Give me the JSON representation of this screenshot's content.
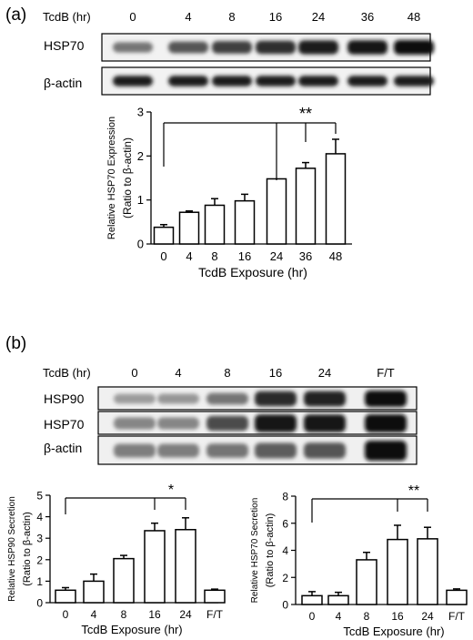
{
  "panel_a": {
    "label": "(a)",
    "blot": {
      "lane_header": "TcdB (hr)",
      "lanes": [
        "0",
        "4",
        "8",
        "16",
        "24",
        "36",
        "48"
      ],
      "rows": [
        {
          "name": "HSP70",
          "intensity": [
            0.35,
            0.55,
            0.68,
            0.78,
            0.88,
            0.94,
            1.0
          ]
        },
        {
          "name": "β-actin",
          "intensity": [
            0.9,
            0.9,
            0.9,
            0.9,
            0.9,
            0.9,
            0.9
          ]
        }
      ]
    },
    "significance": "**"
  },
  "panel_b": {
    "label": "(b)",
    "blot": {
      "lane_header": "TcdB (hr)",
      "lanes": [
        "0",
        "4",
        "8",
        "16",
        "24",
        "F/T"
      ],
      "rows": [
        {
          "name": "HSP90",
          "intensity": [
            0.12,
            0.15,
            0.35,
            0.8,
            0.85,
            1.0
          ]
        },
        {
          "name": "HSP70",
          "intensity": [
            0.25,
            0.25,
            0.6,
            0.95,
            0.95,
            1.0
          ]
        },
        {
          "name": "β-actin",
          "intensity": [
            0.3,
            0.3,
            0.35,
            0.5,
            0.55,
            1.0
          ]
        }
      ]
    },
    "significance_left": "*",
    "significance_right": "**"
  },
  "chart_data": [
    {
      "type": "bar",
      "categories": [
        "0",
        "4",
        "8",
        "16",
        "24",
        "36",
        "48"
      ],
      "values": [
        0.38,
        0.72,
        0.88,
        0.98,
        1.48,
        1.72,
        2.05
      ],
      "errors": [
        0.06,
        0.03,
        0.15,
        0.15,
        0.0,
        0.13,
        0.33
      ],
      "xlabel": "TcdB Exposure (hr)",
      "ylabel": "Relative HSP70 Expression",
      "ylabel2": "(Ratio to β-actin)",
      "ylim": [
        0,
        3
      ],
      "yticks": [
        "0",
        "1",
        "2",
        "3"
      ]
    },
    {
      "type": "bar",
      "categories": [
        "0",
        "4",
        "8",
        "16",
        "24",
        "F/T"
      ],
      "values": [
        0.58,
        1.0,
        2.05,
        3.35,
        3.4,
        0.58
      ],
      "errors": [
        0.12,
        0.33,
        0.15,
        0.35,
        0.55,
        0.05
      ],
      "xlabel": "TcdB Exposure (hr)",
      "ylabel": "Relative HSP90 Secretion",
      "ylabel2": "(Ratio to β-actin)",
      "ylim": [
        0,
        5
      ],
      "yticks": [
        "0",
        "1",
        "2",
        "3",
        "4",
        "5"
      ]
    },
    {
      "type": "bar",
      "categories": [
        "0",
        "4",
        "8",
        "16",
        "24",
        "F/T"
      ],
      "values": [
        0.65,
        0.65,
        3.3,
        4.8,
        4.85,
        1.05
      ],
      "errors": [
        0.3,
        0.25,
        0.55,
        1.05,
        0.85,
        0.1
      ],
      "xlabel": "TcdB Exposure (hr)",
      "ylabel": "Relative HSP70 Secretion",
      "ylabel2": "(Ratio to β-actin)",
      "ylim": [
        0,
        8
      ],
      "yticks": [
        "0",
        "2",
        "4",
        "6",
        "8"
      ]
    }
  ]
}
